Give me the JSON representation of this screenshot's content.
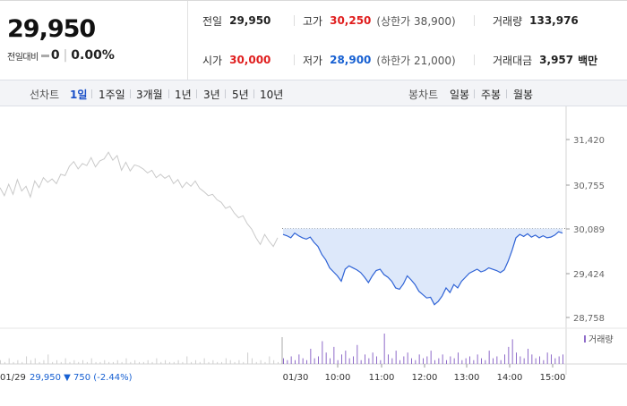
{
  "summary": {
    "price": "29,950",
    "change_label": "전일대비",
    "change_amount": "0",
    "change_rate": "0.00%",
    "stats": {
      "prev_close": {
        "label": "전일",
        "value": "29,950"
      },
      "high": {
        "label": "고가",
        "value": "30,250",
        "limit_label": "상한가",
        "limit_value": "38,900"
      },
      "volume": {
        "label": "거래량",
        "value": "133,976"
      },
      "open": {
        "label": "시가",
        "value": "30,000"
      },
      "low": {
        "label": "저가",
        "value": "28,900",
        "limit_label": "하한가",
        "limit_value": "21,000"
      },
      "amount": {
        "label": "거래대금",
        "value": "3,957",
        "unit": "백만"
      }
    }
  },
  "toolbar": {
    "line_label": "선차트",
    "line_periods": [
      "1일",
      "1주일",
      "3개월",
      "1년",
      "3년",
      "5년",
      "10년"
    ],
    "active_period": "1일",
    "candle_label": "봉차트",
    "candle_periods": [
      "일봉",
      "주봉",
      "월봉"
    ]
  },
  "chart_data": {
    "type": "line",
    "reference_price": 30089,
    "y_ticks": [
      "31,420",
      "30,755",
      "30,089",
      "29,424",
      "28,758"
    ],
    "y_tick_values": [
      31420,
      30755,
      30089,
      29424,
      28758
    ],
    "ylim": [
      28700,
      31500
    ],
    "x_ticks": [
      "10:00",
      "11:00",
      "12:00",
      "13:00",
      "14:00",
      "15:00"
    ],
    "prev_day_label": "01/29",
    "prev_day_summary": {
      "close": "29,950",
      "arrow": "▼",
      "change": "750",
      "rate": "(-2.44%)"
    },
    "today_label": "01/30",
    "volume_legend": "거래량",
    "series": [
      {
        "session": "prev",
        "color": "#c9c9c9",
        "values": [
          30700,
          30580,
          30750,
          30600,
          30820,
          30650,
          30720,
          30560,
          30800,
          30700,
          30850,
          30780,
          30830,
          30760,
          30900,
          30880,
          31020,
          31090,
          30980,
          31060,
          31030,
          31150,
          31010,
          31100,
          31130,
          31230,
          31110,
          31180,
          30960,
          31080,
          30950,
          31040,
          31020,
          30980,
          30920,
          30960,
          30850,
          30900,
          30840,
          30880,
          30760,
          30820,
          30700,
          30780,
          30720,
          30800,
          30690,
          30640,
          30580,
          30600,
          30520,
          30480,
          30390,
          30420,
          30320,
          30250,
          30280,
          30160,
          30080,
          29950,
          29850,
          30000,
          29900,
          29820,
          29950
        ]
      },
      {
        "session": "today",
        "color": "#2f63d6",
        "values": [
          30000,
          29980,
          29950,
          30020,
          29980,
          29950,
          29930,
          29960,
          29880,
          29820,
          29700,
          29620,
          29500,
          29440,
          29380,
          29300,
          29480,
          29530,
          29500,
          29470,
          29430,
          29360,
          29280,
          29380,
          29460,
          29480,
          29400,
          29360,
          29300,
          29200,
          29180,
          29260,
          29380,
          29320,
          29250,
          29150,
          29100,
          29050,
          29060,
          28950,
          29000,
          29080,
          29200,
          29130,
          29250,
          29200,
          29300,
          29360,
          29420,
          29450,
          29480,
          29440,
          29460,
          29500,
          29480,
          29460,
          29430,
          29470,
          29600,
          29760,
          29950,
          30000,
          29970,
          30010,
          29960,
          29990,
          29950,
          29980,
          29950,
          29960,
          29990,
          30040,
          30020
        ]
      }
    ],
    "volume": {
      "prev": [
        2,
        1,
        3,
        1,
        2,
        1,
        4,
        2,
        3,
        1,
        2,
        5,
        1,
        2,
        1,
        3,
        1,
        2,
        1,
        2,
        1,
        3,
        1,
        1,
        2,
        1,
        1,
        2,
        1,
        3,
        1,
        2,
        1,
        1,
        2,
        1,
        3,
        1,
        2,
        1,
        1,
        2,
        1,
        4,
        1,
        2,
        1,
        3,
        1,
        2,
        1,
        1,
        3,
        2,
        1,
        2,
        1,
        6,
        3,
        1,
        2,
        1,
        4,
        2,
        1
      ],
      "today": [
        3,
        2,
        4,
        2,
        5,
        3,
        2,
        8,
        3,
        4,
        12,
        6,
        3,
        9,
        2,
        5,
        7,
        3,
        4,
        10,
        2,
        5,
        3,
        6,
        4,
        2,
        16,
        5,
        3,
        7,
        2,
        4,
        6,
        3,
        2,
        5,
        3,
        4,
        7,
        2,
        3,
        5,
        2,
        4,
        3,
        6,
        2,
        3,
        4,
        2,
        5,
        3,
        2,
        7,
        3,
        4,
        2,
        5,
        9,
        13,
        6,
        4,
        3,
        8,
        5,
        3,
        4,
        2,
        6,
        5,
        3,
        4,
        5
      ]
    }
  }
}
